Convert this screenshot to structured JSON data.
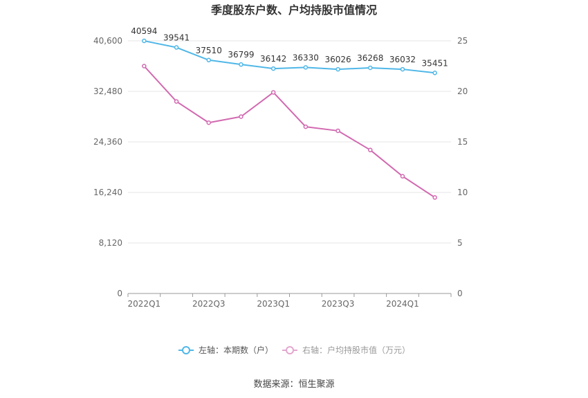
{
  "chart_data": {
    "type": "line",
    "title": "季度股东户数、户均持股市值情况",
    "categories": [
      "2022Q1",
      "2022Q2",
      "2022Q3",
      "2022Q4",
      "2023Q1",
      "2023Q2",
      "2023Q3",
      "2023Q4",
      "2024Q1",
      "2024Q2"
    ],
    "x_tick_labels": [
      "2022Q1",
      "2022Q3",
      "2023Q1",
      "2023Q3",
      "2024Q1"
    ],
    "left_axis": {
      "ylim": [
        0,
        40600
      ],
      "ticks": [
        "0",
        "8,120",
        "16,240",
        "24,360",
        "32,480",
        "40,600"
      ],
      "tick_values": [
        0,
        8120,
        16240,
        24360,
        32480,
        40600
      ]
    },
    "right_axis": {
      "ylim": [
        0,
        25
      ],
      "ticks": [
        "0",
        "5",
        "10",
        "15",
        "20",
        "25"
      ],
      "tick_values": [
        0,
        5,
        10,
        15,
        20,
        25
      ]
    },
    "series": [
      {
        "name": "左轴：本期数（户）",
        "axis": "left",
        "color": "#4fb7e8",
        "values": [
          40594,
          39541,
          37510,
          36799,
          36142,
          36330,
          36026,
          36268,
          36032,
          35451
        ],
        "labels": [
          "40594",
          "39541",
          "37510",
          "36799",
          "36142",
          "36330",
          "36026",
          "36268",
          "36032",
          "35451"
        ]
      },
      {
        "name": "右轴：户均持股市值（万元）",
        "axis": "right",
        "color": "#d269b0",
        "values": [
          22.5,
          19.0,
          16.9,
          17.5,
          19.9,
          16.5,
          16.1,
          14.2,
          11.6,
          9.5
        ]
      }
    ],
    "grid": true,
    "legend_position": "bottom"
  },
  "source": "数据来源：恒生聚源"
}
